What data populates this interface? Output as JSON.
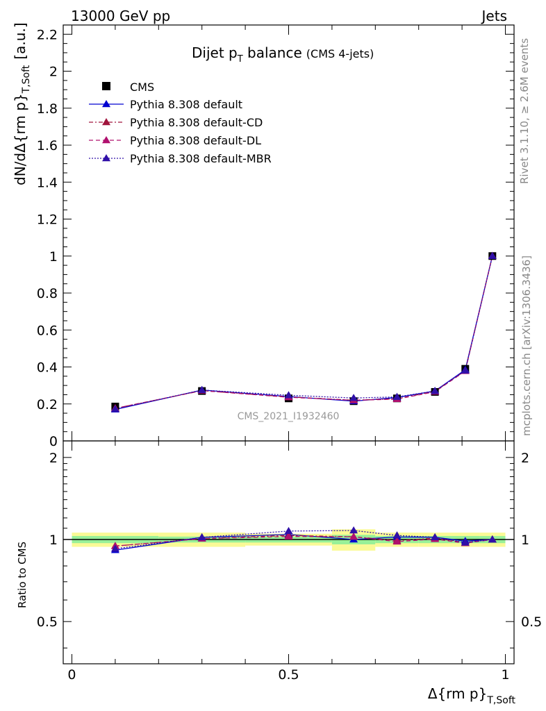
{
  "header": {
    "energy_label": "13000 GeV pp",
    "process_label": "Jets"
  },
  "side_labels": {
    "rivet": "Rivet 3.1.10, ≥ 2.6M events",
    "mcplots": "mcplots.cern.ch [arXiv:1306.3436]"
  },
  "chart_data": {
    "type": "line",
    "title": "Dijet p",
    "title_sub": "T",
    "title_rest": " balance",
    "title_note": "(CMS 4-jets)",
    "watermark": "CMS_2021_I1932460",
    "xlabel": "Δ{rm p}",
    "xlabel_sub": "T,Soft",
    "ylabel": "dN/dΔ{rm p}",
    "ylabel_sub": "T,Soft",
    "ylabel_unit": "[a.u.]",
    "ratio_ylabel": "Ratio to CMS",
    "xlim": [
      -0.02,
      1.02
    ],
    "ylim": [
      0,
      2.25
    ],
    "ratio_ylim": [
      0.35,
      2.3
    ],
    "x_ticks": [
      "0",
      "0.5",
      "1"
    ],
    "y_ticks": [
      "0",
      "0.2",
      "0.4",
      "0.6",
      "0.8",
      "1",
      "1.2",
      "1.4",
      "1.6",
      "1.8",
      "2",
      "2.2"
    ],
    "ratio_ticks": [
      "0.5",
      "1",
      "2"
    ],
    "bins": [
      [
        0.0,
        0.2
      ],
      [
        0.2,
        0.4
      ],
      [
        0.4,
        0.6
      ],
      [
        0.6,
        0.7
      ],
      [
        0.7,
        0.8
      ],
      [
        0.8,
        0.875
      ],
      [
        0.875,
        0.94
      ],
      [
        0.94,
        1.0
      ]
    ],
    "x": [
      0.1,
      0.3,
      0.5,
      0.65,
      0.75,
      0.8375,
      0.9075,
      0.97
    ],
    "data": {
      "name": "CMS",
      "values": [
        0.186,
        0.27,
        0.23,
        0.215,
        0.23,
        0.265,
        0.39,
        1.0
      ],
      "band_inner": [
        0.03,
        0.025,
        0.025,
        0.04,
        0.03,
        0.03,
        0.03,
        0.03
      ],
      "band_outer": [
        0.06,
        0.06,
        0.05,
        0.09,
        0.06,
        0.06,
        0.06,
        0.06
      ]
    },
    "series": [
      {
        "name": "Pythia 8.308 default",
        "color": "#0000d0",
        "style": "solid",
        "values": [
          0.17,
          0.275,
          0.24,
          0.215,
          0.235,
          0.27,
          0.385,
          1.0
        ]
      },
      {
        "name": "Pythia 8.308 default-CD",
        "color": "#a0143c",
        "style": "dashdot",
        "values": [
          0.176,
          0.272,
          0.238,
          0.22,
          0.228,
          0.268,
          0.38,
          1.0
        ]
      },
      {
        "name": "Pythia 8.308 default-DL",
        "color": "#b0106e",
        "style": "dashed",
        "values": [
          0.176,
          0.272,
          0.236,
          0.22,
          0.226,
          0.266,
          0.378,
          1.0
        ]
      },
      {
        "name": "Pythia 8.308 default-MBR",
        "color": "#3010a8",
        "style": "dotted",
        "values": [
          0.172,
          0.275,
          0.247,
          0.232,
          0.238,
          0.27,
          0.38,
          1.0
        ]
      }
    ]
  }
}
